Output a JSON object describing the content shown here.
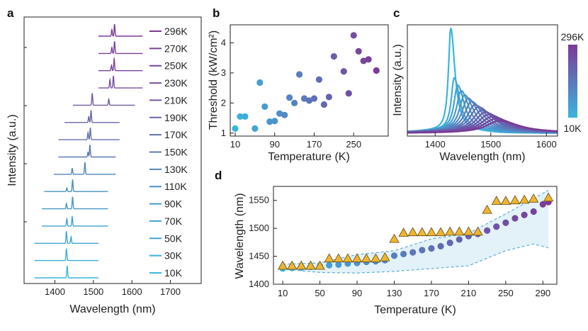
{
  "figure": {
    "panel_labels": [
      "a",
      "b",
      "c",
      "d"
    ]
  },
  "chart_data": [
    {
      "panel": "a",
      "type": "line",
      "title": "",
      "xlabel": "Wavelength (nm)",
      "ylabel": "Intensity (a.u.)",
      "xlim": [
        1320,
        1780
      ],
      "xticks": [
        1400,
        1500,
        1600,
        1700
      ],
      "xtick_labels": [
        "1400",
        "1500",
        "1600",
        "1700"
      ],
      "series": [
        {
          "name": "296K",
          "color": "#7b3a97",
          "range": [
            1513,
            1628
          ],
          "peaks": [
            [
              1548,
              0.55
            ],
            [
              1555,
              1.0
            ]
          ]
        },
        {
          "name": "270K",
          "color": "#7c3f98",
          "range": [
            1513,
            1628
          ],
          "peaks": [
            [
              1548,
              0.5
            ],
            [
              1555,
              1.0
            ]
          ]
        },
        {
          "name": "250K",
          "color": "#7a449a",
          "range": [
            1513,
            1628
          ],
          "peaks": [
            [
              1547,
              0.45
            ],
            [
              1554,
              1.0
            ]
          ]
        },
        {
          "name": "230K",
          "color": "#77509d",
          "range": [
            1513,
            1628
          ],
          "peaks": [
            [
              1543,
              0.7
            ],
            [
              1552,
              1.0
            ]
          ]
        },
        {
          "name": "210K",
          "color": "#715a9f",
          "range": [
            1447,
            1608
          ],
          "peaks": [
            [
              1497,
              1.0
            ],
            [
              1540,
              0.5
            ]
          ]
        },
        {
          "name": "190K",
          "color": "#6a66a6",
          "range": [
            1425,
            1568
          ],
          "peaks": [
            [
              1488,
              0.5
            ],
            [
              1494,
              1.0
            ]
          ]
        },
        {
          "name": "170K",
          "color": "#646fab",
          "range": [
            1409,
            1568
          ],
          "peaks": [
            [
              1486,
              0.6
            ],
            [
              1492,
              1.0
            ]
          ]
        },
        {
          "name": "150K",
          "color": "#5c78b0",
          "range": [
            1409,
            1558
          ],
          "peaks": [
            [
              1486,
              0.4
            ],
            [
              1491,
              1.0
            ]
          ]
        },
        {
          "name": "130K",
          "color": "#5484b8",
          "range": [
            1397,
            1558
          ],
          "peaks": [
            [
              1445,
              0.5
            ],
            [
              1478,
              1.0
            ]
          ]
        },
        {
          "name": "110K",
          "color": "#4a90c0",
          "range": [
            1372,
            1538
          ],
          "peaks": [
            [
              1431,
              0.3
            ],
            [
              1446,
              1.0
            ]
          ]
        },
        {
          "name": "90K",
          "color": "#4598c8",
          "range": [
            1366,
            1538
          ],
          "peaks": [
            [
              1430,
              0.45
            ],
            [
              1446,
              1.0
            ]
          ]
        },
        {
          "name": "70K",
          "color": "#41a1cf",
          "range": [
            1366,
            1538
          ],
          "peaks": [
            [
              1431,
              0.6
            ],
            [
              1445,
              0.8
            ]
          ]
        },
        {
          "name": "50K",
          "color": "#3ea8d5",
          "range": [
            1347,
            1513
          ],
          "peaks": [
            [
              1430,
              1.0
            ],
            [
              1442,
              0.55
            ]
          ]
        },
        {
          "name": "30K",
          "color": "#3cafda",
          "range": [
            1347,
            1513
          ],
          "peaks": [
            [
              1430,
              1.0
            ]
          ]
        },
        {
          "name": "10K",
          "color": "#3ab5de",
          "range": [
            1347,
            1513
          ],
          "peaks": [
            [
              1432,
              1.0
            ]
          ]
        }
      ]
    },
    {
      "panel": "b",
      "type": "scatter",
      "title": "",
      "xlabel": "Temperature (K)",
      "ylabel": "Threshold (kW/cm²)",
      "xlim": [
        0,
        320
      ],
      "ylim": [
        0.9,
        4.6
      ],
      "xticks": [
        10,
        90,
        170,
        250
      ],
      "yticks": [
        1,
        2,
        3,
        4
      ],
      "color_range": [
        "#3ab5de",
        "#7b3a97"
      ],
      "x": [
        10,
        20,
        30,
        50,
        60,
        70,
        80,
        90,
        100,
        110,
        120,
        130,
        140,
        150,
        160,
        170,
        180,
        190,
        200,
        210,
        230,
        240,
        250,
        260,
        270,
        280,
        296
      ],
      "y": [
        1.15,
        1.55,
        1.55,
        1.15,
        2.68,
        1.88,
        1.38,
        1.4,
        1.65,
        1.6,
        2.18,
        2.0,
        2.95,
        2.15,
        2.08,
        2.15,
        2.78,
        1.95,
        2.2,
        3.55,
        3.05,
        2.32,
        4.25,
        3.72,
        3.4,
        3.45,
        3.08
      ]
    },
    {
      "panel": "c",
      "type": "line",
      "title": "",
      "xlabel": "Wavelength (nm)",
      "ylabel": "Intensity (a.u.)",
      "xlim": [
        1350,
        1620
      ],
      "xticks": [
        1400,
        1500,
        1600
      ],
      "colorbar": {
        "top_label": "296K",
        "bottom_label": "10K",
        "colors": [
          "#7b3a97",
          "#3ab5de"
        ]
      },
      "series_count": 15,
      "center_range_nm": [
        1428,
        1515
      ],
      "peak_heights": [
        1.0,
        0.52,
        0.45,
        0.4,
        0.36,
        0.33,
        0.3,
        0.27,
        0.25,
        0.22,
        0.2,
        0.18,
        0.16,
        0.14,
        0.12
      ]
    },
    {
      "panel": "d",
      "type": "scatter",
      "title": "",
      "xlabel": "Temperature (K)",
      "ylabel": "Wavelength (nm)",
      "xlim": [
        0,
        305
      ],
      "ylim": [
        1400,
        1575
      ],
      "xticks": [
        10,
        50,
        90,
        130,
        170,
        210,
        250,
        290
      ],
      "yticks": [
        1400,
        1450,
        1500,
        1550
      ],
      "series": [
        {
          "name": "circles",
          "marker": "circle",
          "colors": [
            "#3ab5de",
            "#7b3a97"
          ],
          "x": [
            10,
            20,
            30,
            40,
            50,
            60,
            70,
            80,
            90,
            100,
            110,
            120,
            130,
            140,
            150,
            160,
            170,
            180,
            190,
            200,
            210,
            220,
            230,
            240,
            250,
            260,
            270,
            280,
            290,
            296
          ],
          "y": [
            1428,
            1429,
            1430,
            1431,
            1432,
            1434,
            1435,
            1437,
            1438,
            1440,
            1441,
            1443,
            1451,
            1454,
            1457,
            1461,
            1464,
            1468,
            1474,
            1480,
            1486,
            1490,
            1496,
            1503,
            1510,
            1518,
            1524,
            1530,
            1543,
            1547
          ]
        },
        {
          "name": "triangles",
          "marker": "triangle",
          "color": "#f0b52b",
          "x": [
            10,
            20,
            30,
            40,
            50,
            60,
            70,
            80,
            90,
            100,
            110,
            120,
            130,
            140,
            150,
            160,
            170,
            180,
            190,
            200,
            210,
            220,
            230,
            240,
            250,
            260,
            270,
            280,
            296
          ],
          "y": [
            1433,
            1433,
            1433,
            1433,
            1433,
            1446,
            1446,
            1446,
            1446,
            1446,
            1446,
            1448,
            1481,
            1492,
            1493,
            1493,
            1493,
            1493,
            1494,
            1494,
            1494,
            1494,
            1533,
            1549,
            1549,
            1550,
            1551,
            1553,
            1555
          ]
        },
        {
          "name": "upper_bound",
          "style": "dashed",
          "color": "#52a8d4",
          "x": [
            10,
            50,
            90,
            130,
            170,
            210,
            250,
            296
          ],
          "y": [
            1436,
            1438,
            1453,
            1460,
            1481,
            1491,
            1526,
            1568
          ]
        },
        {
          "name": "lower_bound",
          "style": "dashed",
          "color": "#52a8d4",
          "x": [
            10,
            50,
            90,
            130,
            170,
            210,
            250,
            280,
            296
          ],
          "y": [
            1427,
            1421,
            1420,
            1423,
            1428,
            1433,
            1460,
            1472,
            1465
          ]
        }
      ]
    }
  ]
}
